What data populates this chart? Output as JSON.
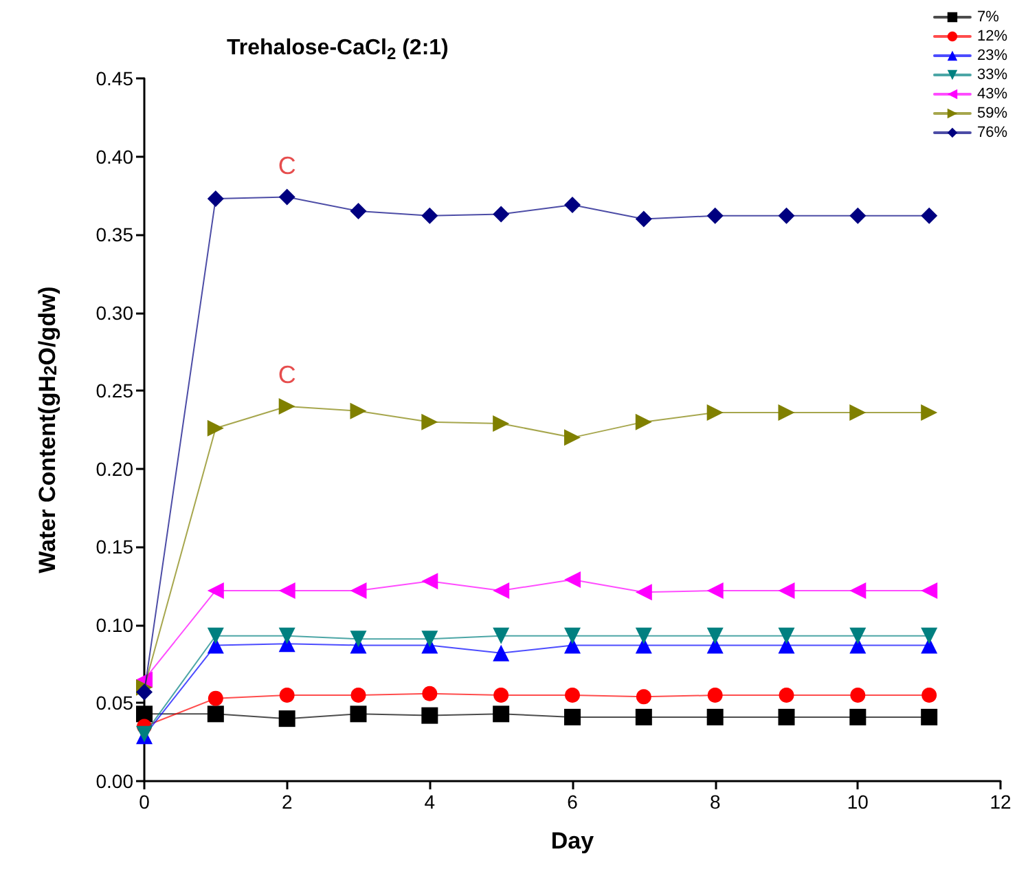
{
  "chart_data": {
    "type": "line",
    "title": "Trehalose-CaCl$_{2}$ (2:1)",
    "xlabel": "Day",
    "ylabel": "Water Content(gH$_{2}$O/gdw)",
    "x": [
      0,
      1,
      2,
      3,
      4,
      5,
      6,
      7,
      8,
      9,
      10,
      11
    ],
    "series": [
      {
        "name": "7%",
        "color": "#000000",
        "marker": "square",
        "values": [
          0.043,
          0.043,
          0.04,
          0.043,
          0.042,
          0.043,
          0.041,
          0.041,
          0.041,
          0.041,
          0.041,
          0.041
        ]
      },
      {
        "name": "12%",
        "color": "#ff0000",
        "marker": "circle",
        "values": [
          0.035,
          0.053,
          0.055,
          0.055,
          0.056,
          0.055,
          0.055,
          0.054,
          0.055,
          0.055,
          0.055,
          0.055
        ]
      },
      {
        "name": "23%",
        "color": "#0000ff",
        "marker": "triangle",
        "values": [
          0.029,
          0.087,
          0.088,
          0.087,
          0.087,
          0.082,
          0.087,
          0.087,
          0.087,
          0.087,
          0.087,
          0.087
        ]
      },
      {
        "name": "33%",
        "color": "#008080",
        "marker": "triangle-down",
        "values": [
          0.03,
          0.093,
          0.093,
          0.091,
          0.091,
          0.093,
          0.093,
          0.093,
          0.093,
          0.093,
          0.093,
          0.093
        ]
      },
      {
        "name": "43%",
        "color": "#ff00ff",
        "marker": "triangle-left",
        "values": [
          0.065,
          0.122,
          0.122,
          0.122,
          0.128,
          0.122,
          0.129,
          0.121,
          0.122,
          0.122,
          0.122,
          0.122
        ]
      },
      {
        "name": "59%",
        "color": "#808000",
        "marker": "triangle-right",
        "values": [
          0.06,
          0.226,
          0.24,
          0.237,
          0.23,
          0.229,
          0.22,
          0.23,
          0.236,
          0.236,
          0.236,
          0.236
        ]
      },
      {
        "name": "76%",
        "color": "#000080",
        "marker": "diamond",
        "values": [
          0.057,
          0.373,
          0.374,
          0.365,
          0.362,
          0.363,
          0.369,
          0.36,
          0.362,
          0.362,
          0.362,
          0.362
        ]
      }
    ],
    "annotations": [
      {
        "text": "C",
        "x": 2,
        "y": 0.374
      },
      {
        "text": "C",
        "x": 2,
        "y": 0.24
      }
    ],
    "xlim": [
      0,
      12
    ],
    "xticks": [
      0,
      2,
      4,
      6,
      8,
      10,
      12
    ],
    "ylim": [
      0,
      0.45
    ],
    "yticks": [
      {
        "value": 0,
        "label": "0.00"
      },
      {
        "value": 0.05,
        "label": "0.05"
      },
      {
        "value": 0.1,
        "label": "0.10"
      },
      {
        "value": 0.15,
        "label": "0.15"
      },
      {
        "value": 0.2,
        "label": "0.20"
      },
      {
        "value": 0.25,
        "label": "0.25"
      },
      {
        "value": 0.3,
        "label": "0.30"
      },
      {
        "value": 0.35,
        "label": "0.35"
      },
      {
        "value": 0.4,
        "label": "0.40"
      },
      {
        "value": 0.45,
        "label": "0.45"
      }
    ],
    "legend": "top right",
    "grid": false,
    "line_style": "solid"
  }
}
